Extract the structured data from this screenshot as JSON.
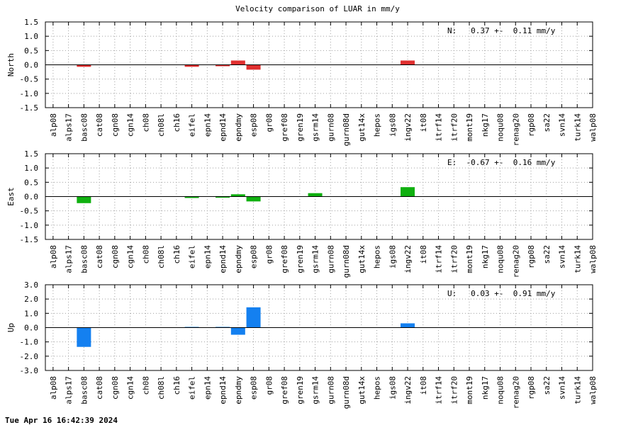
{
  "chart_data": {
    "type": "bar",
    "title": "Velocity comparison of LUAR in mm/y",
    "categories": [
      "alp08",
      "alps17",
      "basc08",
      "cat08",
      "cgn08",
      "cgn14",
      "ch08",
      "ch08l",
      "ch16",
      "eifel",
      "epn14",
      "epnd14",
      "epndmy",
      "esp08",
      "gr08",
      "gref08",
      "gren19",
      "gsrm14",
      "gurn08",
      "gurn08d",
      "gut14x",
      "hepos",
      "igs08",
      "ingv22",
      "it08",
      "itrf14",
      "itrf20",
      "mont19",
      "nkg17",
      "noqu08",
      "renag20",
      "rgp08",
      "sa22",
      "svn14",
      "turk14",
      "walp08"
    ],
    "panels": [
      {
        "ylabel": "North",
        "ylim": [
          -1.5,
          1.5
        ],
        "yticks": [
          -1.5,
          -1.0,
          -0.5,
          0.0,
          0.5,
          1.0,
          1.5
        ],
        "ytick_labels": [
          "-1.5",
          "-1.0",
          "-0.5",
          "0.0",
          "0.5",
          "1.0",
          "1.5"
        ],
        "annotation": "N:   0.37 +-  0.11 mm/y",
        "color": "#e03030",
        "values": [
          0,
          0,
          -0.07,
          0,
          0,
          0,
          0,
          0,
          0,
          -0.07,
          0,
          -0.05,
          0.15,
          -0.17,
          0,
          0,
          0,
          0,
          0,
          0,
          0,
          0,
          0,
          0.15,
          0,
          0,
          0,
          0,
          0,
          0,
          0,
          0,
          0,
          0,
          0,
          0
        ],
        "grid": true
      },
      {
        "ylabel": "East",
        "ylim": [
          -1.5,
          1.5
        ],
        "yticks": [
          -1.5,
          -1.0,
          -0.5,
          0.0,
          0.5,
          1.0,
          1.5
        ],
        "ytick_labels": [
          "-1.5",
          "-1.0",
          "-0.5",
          "0.0",
          "0.5",
          "1.0",
          "1.5"
        ],
        "annotation": "E:  -0.67 +-  0.16 mm/y",
        "color": "#10b010",
        "values": [
          0,
          0,
          -0.23,
          0,
          0,
          0,
          0,
          0,
          0,
          -0.05,
          0,
          -0.04,
          0.08,
          -0.17,
          0,
          0,
          0,
          0.12,
          0,
          0,
          0,
          0,
          0,
          0.33,
          0,
          0,
          0,
          0,
          0,
          0,
          0,
          0,
          0,
          0,
          0,
          0
        ],
        "grid": true
      },
      {
        "ylabel": "Up",
        "ylim": [
          -3.0,
          3.0
        ],
        "yticks": [
          -3.0,
          -2.0,
          -1.0,
          0.0,
          1.0,
          2.0,
          3.0
        ],
        "ytick_labels": [
          "-3.0",
          "-2.0",
          "-1.0",
          "0.0",
          "1.0",
          "2.0",
          "3.0"
        ],
        "annotation": "U:   0.03 +-  0.91 mm/y",
        "color": "#1480f0",
        "values": [
          0,
          0,
          -1.35,
          0,
          0,
          0,
          0,
          0,
          0,
          0.05,
          0,
          0.05,
          -0.5,
          1.42,
          0,
          0,
          0,
          0,
          0,
          0,
          0,
          0,
          0,
          0.3,
          0,
          0,
          0,
          0,
          0,
          0,
          0,
          0,
          0,
          0,
          0,
          0
        ],
        "grid": true
      }
    ]
  },
  "footer": {
    "timestamp": "Tue Apr 16 16:42:39 2024"
  }
}
